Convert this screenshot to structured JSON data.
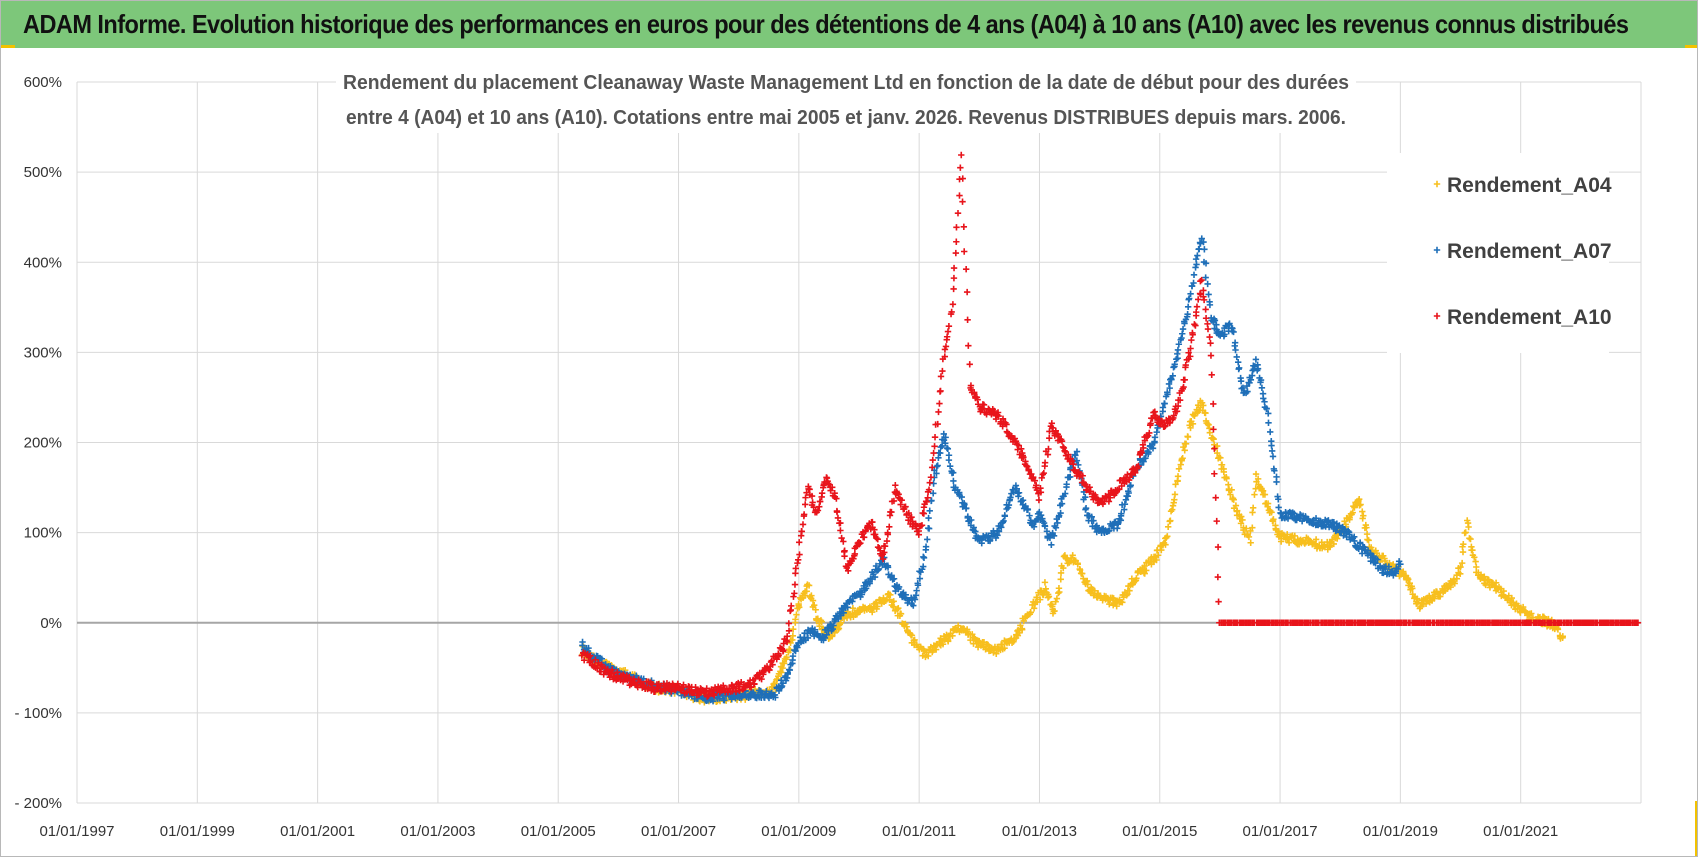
{
  "banner": {
    "title": "ADAM Informe. Evolution historique des performances en euros pour des détentions de 4 ans (A04) à 10 ans (A10) avec les revenus connus distribués"
  },
  "colors": {
    "banner_bg": "#7dc77a",
    "accent": "#f2c200",
    "series_a04": "#f7bf1e",
    "series_a07": "#1f6fb8",
    "series_a10": "#e8141b",
    "grid": "#d9d9d9",
    "zero_line": "#a6a6a6"
  },
  "chart_data": {
    "type": "scatter",
    "title_lines": [
      "Rendement du placement Cleanaway Waste Management Ltd en fonction de la date de début pour des durées",
      "entre 4 (A04) et 10 ans (A10). Cotations entre mai 2005 et janv. 2026. Revenus DISTRIBUES depuis mars. 2006."
    ],
    "xlabel": "",
    "ylabel": "",
    "x_range": [
      "1997-01-01",
      "2023-01-01"
    ],
    "ylim": [
      -200,
      600
    ],
    "y_ticks": [
      {
        "value": 600,
        "label": "600%"
      },
      {
        "value": 500,
        "label": "500%"
      },
      {
        "value": 400,
        "label": "400%"
      },
      {
        "value": 300,
        "label": "300%"
      },
      {
        "value": 200,
        "label": "200%"
      },
      {
        "value": 100,
        "label": "100%"
      },
      {
        "value": 0,
        "label": "0%"
      },
      {
        "value": -100,
        "label": "- 100%"
      },
      {
        "value": -200,
        "label": "- 200%"
      }
    ],
    "x_ticks": [
      {
        "year": 1997,
        "label": "01/01/1997"
      },
      {
        "year": 1999,
        "label": "01/01/1999"
      },
      {
        "year": 2001,
        "label": "01/01/2001"
      },
      {
        "year": 2003,
        "label": "01/01/2003"
      },
      {
        "year": 2005,
        "label": "01/01/2005"
      },
      {
        "year": 2007,
        "label": "01/01/2007"
      },
      {
        "year": 2009,
        "label": "01/01/2009"
      },
      {
        "year": 2011,
        "label": "01/01/2011"
      },
      {
        "year": 2013,
        "label": "01/01/2013"
      },
      {
        "year": 2015,
        "label": "01/01/2015"
      },
      {
        "year": 2017,
        "label": "01/01/2017"
      },
      {
        "year": 2019,
        "label": "01/01/2019"
      },
      {
        "year": 2021,
        "label": "01/01/2021"
      }
    ],
    "grid": true,
    "legend_position": "top-right",
    "series": [
      {
        "name": "Rendement_A04",
        "color": "#f7bf1e",
        "points": [
          [
            2005.4,
            -30
          ],
          [
            2005.8,
            -48
          ],
          [
            2006.2,
            -60
          ],
          [
            2006.6,
            -72
          ],
          [
            2007.0,
            -75
          ],
          [
            2007.4,
            -85
          ],
          [
            2007.8,
            -82
          ],
          [
            2008.2,
            -80
          ],
          [
            2008.6,
            -72
          ],
          [
            2008.8,
            -40
          ],
          [
            2009.0,
            20
          ],
          [
            2009.15,
            40
          ],
          [
            2009.3,
            5
          ],
          [
            2009.5,
            -15
          ],
          [
            2009.8,
            10
          ],
          [
            2010.2,
            15
          ],
          [
            2010.5,
            30
          ],
          [
            2010.7,
            5
          ],
          [
            2010.9,
            -20
          ],
          [
            2011.1,
            -35
          ],
          [
            2011.4,
            -20
          ],
          [
            2011.7,
            -5
          ],
          [
            2012.0,
            -25
          ],
          [
            2012.3,
            -30
          ],
          [
            2012.6,
            -15
          ],
          [
            2012.9,
            20
          ],
          [
            2013.1,
            40
          ],
          [
            2013.25,
            10
          ],
          [
            2013.4,
            70
          ],
          [
            2013.6,
            70
          ],
          [
            2013.8,
            40
          ],
          [
            2014.0,
            30
          ],
          [
            2014.3,
            20
          ],
          [
            2014.6,
            50
          ],
          [
            2014.9,
            70
          ],
          [
            2015.1,
            90
          ],
          [
            2015.3,
            160
          ],
          [
            2015.5,
            220
          ],
          [
            2015.7,
            245
          ],
          [
            2015.9,
            200
          ],
          [
            2016.1,
            160
          ],
          [
            2016.3,
            120
          ],
          [
            2016.5,
            90
          ],
          [
            2016.6,
            160
          ],
          [
            2016.8,
            130
          ],
          [
            2017.0,
            95
          ],
          [
            2017.4,
            90
          ],
          [
            2017.8,
            85
          ],
          [
            2018.1,
            110
          ],
          [
            2018.3,
            140
          ],
          [
            2018.5,
            80
          ],
          [
            2018.7,
            70
          ],
          [
            2018.9,
            60
          ],
          [
            2019.1,
            50
          ],
          [
            2019.3,
            20
          ],
          [
            2019.6,
            30
          ],
          [
            2019.9,
            45
          ],
          [
            2020.0,
            60
          ],
          [
            2020.1,
            110
          ],
          [
            2020.3,
            50
          ],
          [
            2020.6,
            40
          ],
          [
            2020.9,
            20
          ],
          [
            2021.2,
            5
          ],
          [
            2021.5,
            0
          ],
          [
            2021.7,
            -15
          ]
        ]
      },
      {
        "name": "Rendement_A07",
        "color": "#1f6fb8",
        "points": [
          [
            2005.4,
            -25
          ],
          [
            2005.8,
            -50
          ],
          [
            2006.2,
            -62
          ],
          [
            2006.6,
            -70
          ],
          [
            2007.0,
            -76
          ],
          [
            2007.4,
            -82
          ],
          [
            2007.8,
            -82
          ],
          [
            2008.2,
            -80
          ],
          [
            2008.6,
            -78
          ],
          [
            2008.8,
            -60
          ],
          [
            2009.0,
            -20
          ],
          [
            2009.2,
            -10
          ],
          [
            2009.4,
            -15
          ],
          [
            2009.6,
            0
          ],
          [
            2009.8,
            20
          ],
          [
            2010.0,
            30
          ],
          [
            2010.2,
            50
          ],
          [
            2010.4,
            70
          ],
          [
            2010.6,
            40
          ],
          [
            2010.9,
            20
          ],
          [
            2011.1,
            80
          ],
          [
            2011.25,
            160
          ],
          [
            2011.4,
            210
          ],
          [
            2011.6,
            150
          ],
          [
            2011.8,
            120
          ],
          [
            2012.0,
            90
          ],
          [
            2012.3,
            100
          ],
          [
            2012.6,
            150
          ],
          [
            2012.9,
            110
          ],
          [
            2013.0,
            120
          ],
          [
            2013.2,
            90
          ],
          [
            2013.4,
            140
          ],
          [
            2013.6,
            190
          ],
          [
            2013.8,
            120
          ],
          [
            2014.0,
            100
          ],
          [
            2014.3,
            110
          ],
          [
            2014.6,
            170
          ],
          [
            2014.9,
            200
          ],
          [
            2015.1,
            250
          ],
          [
            2015.3,
            300
          ],
          [
            2015.5,
            360
          ],
          [
            2015.7,
            430
          ],
          [
            2015.85,
            340
          ],
          [
            2016.0,
            320
          ],
          [
            2016.2,
            330
          ],
          [
            2016.4,
            250
          ],
          [
            2016.6,
            290
          ],
          [
            2016.8,
            230
          ],
          [
            2017.0,
            120
          ],
          [
            2017.4,
            115
          ],
          [
            2017.8,
            110
          ],
          [
            2018.1,
            100
          ],
          [
            2018.4,
            80
          ],
          [
            2018.7,
            60
          ],
          [
            2018.9,
            55
          ],
          [
            2019.0,
            65
          ]
        ]
      },
      {
        "name": "Rendement_A10",
        "color": "#e8141b",
        "points": [
          [
            2005.4,
            -35
          ],
          [
            2005.8,
            -55
          ],
          [
            2006.2,
            -65
          ],
          [
            2006.6,
            -72
          ],
          [
            2007.0,
            -72
          ],
          [
            2007.4,
            -78
          ],
          [
            2007.8,
            -74
          ],
          [
            2008.2,
            -68
          ],
          [
            2008.5,
            -50
          ],
          [
            2008.8,
            -20
          ],
          [
            2009.0,
            80
          ],
          [
            2009.15,
            150
          ],
          [
            2009.3,
            120
          ],
          [
            2009.45,
            160
          ],
          [
            2009.6,
            140
          ],
          [
            2009.8,
            60
          ],
          [
            2010.0,
            90
          ],
          [
            2010.2,
            110
          ],
          [
            2010.4,
            70
          ],
          [
            2010.6,
            150
          ],
          [
            2010.8,
            120
          ],
          [
            2011.0,
            100
          ],
          [
            2011.2,
            160
          ],
          [
            2011.4,
            290
          ],
          [
            2011.55,
            350
          ],
          [
            2011.7,
            520
          ],
          [
            2011.85,
            260
          ],
          [
            2012.0,
            240
          ],
          [
            2012.3,
            230
          ],
          [
            2012.6,
            200
          ],
          [
            2012.9,
            160
          ],
          [
            2013.0,
            140
          ],
          [
            2013.2,
            220
          ],
          [
            2013.5,
            180
          ],
          [
            2013.8,
            150
          ],
          [
            2014.0,
            130
          ],
          [
            2014.3,
            150
          ],
          [
            2014.6,
            170
          ],
          [
            2014.9,
            230
          ],
          [
            2015.1,
            220
          ],
          [
            2015.3,
            240
          ],
          [
            2015.5,
            300
          ],
          [
            2015.7,
            380
          ],
          [
            2015.85,
            300
          ],
          [
            2016.0,
            0
          ],
          [
            2016.5,
            0
          ],
          [
            2017.0,
            0
          ],
          [
            2017.5,
            0
          ],
          [
            2018.0,
            0
          ],
          [
            2018.5,
            0
          ],
          [
            2019.0,
            0
          ],
          [
            2019.5,
            0
          ],
          [
            2020.0,
            0
          ],
          [
            2020.5,
            0
          ],
          [
            2021.0,
            0
          ],
          [
            2021.5,
            0
          ],
          [
            2022.0,
            0
          ],
          [
            2022.5,
            0
          ],
          [
            2022.95,
            0
          ]
        ]
      }
    ]
  }
}
